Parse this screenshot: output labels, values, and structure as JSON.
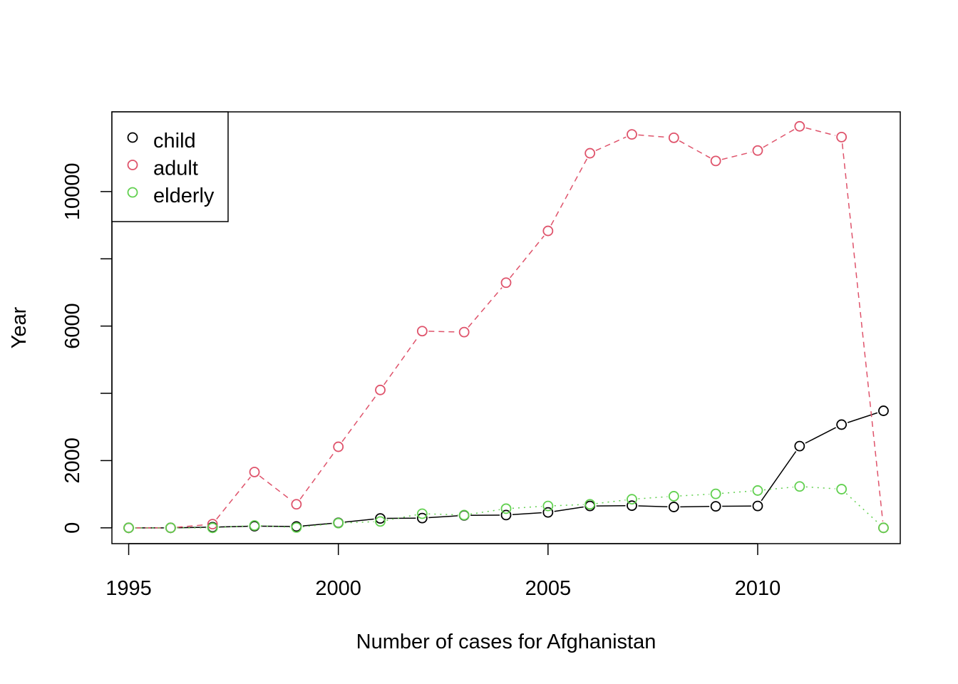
{
  "chart_data": {
    "type": "line",
    "title": "",
    "xlabel": "Number of cases for Afghanistan",
    "ylabel": "Year",
    "xlim": [
      1994.6,
      2013.4
    ],
    "ylim": [
      -470,
      12370
    ],
    "x_ticks": [
      "1995",
      "2000",
      "2005",
      "2010"
    ],
    "x_tick_values": [
      1995,
      2000,
      2005,
      2010
    ],
    "y_ticks": [
      "0",
      "2000",
      "6000",
      "10000"
    ],
    "y_tick_values": [
      0,
      2000,
      6000,
      10000
    ],
    "y_minor_ticks": [
      4000,
      8000
    ],
    "grid": false,
    "legend_position": "top-left",
    "x": [
      1995,
      1996,
      1997,
      1998,
      1999,
      2000,
      2001,
      2002,
      2003,
      2004,
      2005,
      2006,
      2007,
      2008,
      2009,
      2010,
      2011,
      2012,
      2013
    ],
    "series": [
      {
        "name": "child",
        "color": "#000000",
        "line_style": "solid",
        "values": [
          0,
          0,
          20,
          50,
          40,
          150,
          280,
          290,
          370,
          380,
          460,
          650,
          660,
          620,
          640,
          650,
          2430,
          3070,
          3480
        ]
      },
      {
        "name": "adult",
        "color": "#DF536B",
        "line_style": "dashed",
        "values": [
          0,
          0,
          110,
          1660,
          700,
          2410,
          4100,
          5850,
          5820,
          7290,
          8830,
          11140,
          11700,
          11600,
          10910,
          11220,
          11940,
          11620,
          0
        ]
      },
      {
        "name": "elderly",
        "color": "#61D04F",
        "line_style": "dotted",
        "values": [
          0,
          0,
          0,
          70,
          10,
          140,
          190,
          420,
          380,
          570,
          650,
          700,
          850,
          940,
          1010,
          1110,
          1230,
          1150,
          0
        ]
      }
    ]
  }
}
